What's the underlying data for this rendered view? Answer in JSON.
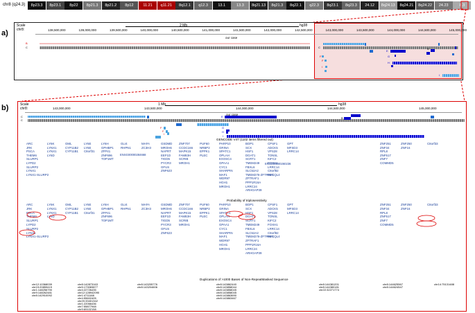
{
  "ideogram": {
    "chrom_label": "chr8 (q24.3)",
    "bands": [
      "8p23.3",
      "8p23.1",
      "8p22",
      "8p21.3",
      "8p21.2",
      "8p12",
      "11.21",
      "q11.21",
      "8q12.1",
      "q12.3",
      "13.1",
      "13.3",
      "8q21.13",
      "8q21.3",
      "8q22.1",
      "q22.3",
      "8q23.1",
      "8q23.3",
      "24.12",
      "8q24.13",
      "8q24.21",
      "8q24.22",
      "24.23",
      "8.3"
    ]
  },
  "panel_a": {
    "label": "a)",
    "scale_label": "Scale",
    "chrom": "chr8:",
    "scale_text": "2 Mb",
    "assembly": "hg38",
    "positions": [
      "138,500,000",
      "139,000,000",
      "139,500,000",
      "140,000,000",
      "140,500,000",
      "141,000,000",
      "141,500,000",
      "142,000,000",
      "142,500,000",
      "143,000,000",
      "143,500,000",
      "144,000,000",
      "144,500,000",
      "145,000,000"
    ],
    "our_case": "our case",
    "track_letters": [
      "B",
      "C",
      "C",
      "F",
      "F",
      "I",
      "B",
      "E",
      "G",
      "H",
      "I"
    ]
  },
  "panel_b": {
    "label": "b)",
    "scale_label": "Scale",
    "chrom": "chr8:",
    "scale_text": "1 Mb",
    "assembly": "hg38",
    "positions": [
      "143,000,000",
      "143,500,000",
      "144,000,000",
      "144,500,000",
      "145,000,000"
    ],
    "our_case": "our case",
    "track_letters": [
      "C",
      "C",
      "F",
      "F",
      "I",
      "B",
      "E",
      "G",
      "H",
      "I"
    ],
    "gencode_title": "GENCODE V47 (1102 items filtered out)",
    "prob_title": "Probability of triplosensitivity",
    "dup_title": "Duplications of >1000 Bases of Non-RepeatMasked Sequence",
    "gencode_cols": [
      [
        "ARC",
        "JRK",
        "PSCA",
        "THEM6",
        "SLURP1",
        "LYPD2",
        "SLURP2",
        "LYNX1",
        "LYNX1-SLURP2"
      ],
      [
        "LY6K",
        "LYNX1",
        "LYNX1",
        "LY6D"
      ],
      [
        "GML",
        "CYP11B2",
        "CYP11B1"
      ],
      [
        "LY6E",
        "LY6E",
        "C8orf31"
      ],
      [
        "LY6H",
        "GPHBP1",
        "ZFP41",
        "ZNF696",
        "TOP1MT"
      ],
      [
        "GLI4",
        "RHPN1"
      ],
      [
        "MAFA",
        "ZC3H3"
      ],
      [
        "GSDMD",
        "MROH6",
        "NAPRT",
        "EEF1D",
        "TIGD5",
        "PYCR3",
        "GFUS",
        "ZNF623"
      ],
      [
        "ZNF707",
        "CCDC166",
        "MAPK15",
        "FAM83H",
        "SCRIB",
        "MROH1"
      ],
      [
        "PUF60",
        "NRBP2",
        "EPPK1",
        "PLEC"
      ],
      [
        "PARP10",
        "GRINA",
        "SPATC1",
        "OPLAH",
        "EXOSC4",
        "GPAA1",
        "CYC1",
        "SHARPIN",
        "MAF1",
        "WDR97",
        "HGH1",
        "MROH1"
      ],
      [
        "BOP1",
        "SCX",
        "HSF1",
        "DGAT1",
        "SCRT1",
        "TMEM249",
        "FBXL6",
        "SLC52A2",
        "TMEM276-ZFTRAF1",
        "ZFTRAF1",
        "PPP1R16A",
        "LRRC24",
        "ARHGAP39"
      ],
      [
        "CPSF1",
        "ADCK5",
        "VPS28",
        "TONSL",
        "KIFC2",
        "FOXH1",
        "LRRC14",
        "C8orf82",
        "RECQL4"
      ],
      [
        "GPT",
        "MFSD3",
        "LRRC14"
      ],
      [
        "ZNF251",
        "ZNF34",
        "RPL8",
        "ZNF517",
        "ZNF7",
        "COMMD5"
      ],
      [
        "ZNF250",
        "ZNF16"
      ],
      [
        "C8orf33"
      ]
    ],
    "gencode_ids": [
      "ENSG00000284668",
      "ENSG00000260236"
    ],
    "dup_entries": [
      "chr12:10368039",
      "chr19:20859419",
      "chr1:148256790",
      "chr9:148262481",
      "chr8:142910092",
      "chr8:142873163",
      "chr5:173083877",
      "chr4:22726435",
      "chr12:128942090",
      "chr1:4711168",
      "chr4:55602405",
      "chr20:33401342",
      "chr1:22066436",
      "chr7:55877948",
      "chr9:69102158",
      "chr8:143205776",
      "chr8:143204606",
      "chr8:143862440",
      "chr8:143858044",
      "chr8:143858045",
      "chr8:143858045",
      "chr8:143863690",
      "chr8:143863467",
      "chr8:144381201",
      "chr8:144380181",
      "chr22:32271774",
      "chr8:144625567",
      "chr8:144624547",
      "chr14:75131488"
    ]
  },
  "colors": {
    "red": "#d10000",
    "blue_dark": "#0000cc",
    "blue_mid": "#1e6ad0",
    "blue_light": "#4aa3df",
    "grey": "#888888",
    "highlight": "#f6dede"
  }
}
